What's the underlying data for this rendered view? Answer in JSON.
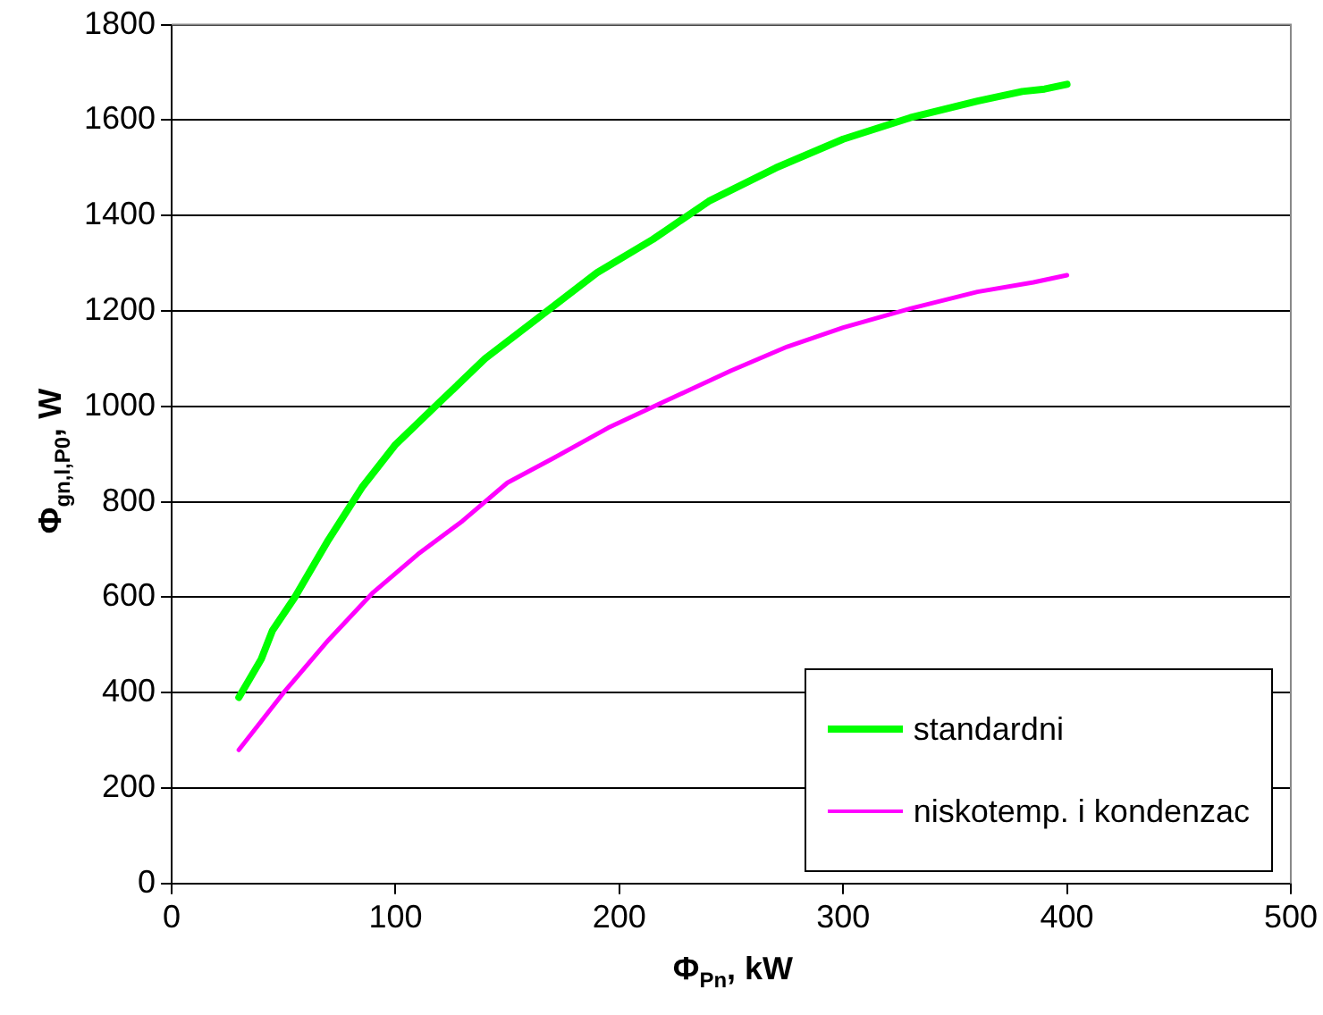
{
  "chart_data": {
    "type": "line",
    "xlabel": "Φ$_{Pn}$, kW",
    "ylabel": "Φ$_{gn,l,P0}$, W",
    "xlim": [
      0,
      500
    ],
    "xticks": [
      0,
      100,
      200,
      300,
      400,
      500
    ],
    "ylim": [
      0,
      1800
    ],
    "yticks": [
      0,
      200,
      400,
      600,
      800,
      1000,
      1200,
      1400,
      1600,
      1800
    ],
    "grid": "y",
    "legend": "bottom right",
    "marker": "none",
    "line_style": "solid",
    "series": [
      {
        "name": "standardni",
        "color": "#00ff00",
        "x": [
          30,
          40,
          45,
          55,
          70,
          85,
          100,
          120,
          140,
          165,
          190,
          215,
          240,
          270,
          300,
          330,
          360,
          380,
          390,
          400
        ],
        "values": [
          390,
          470,
          530,
          600,
          720,
          830,
          920,
          1010,
          1100,
          1190,
          1280,
          1350,
          1430,
          1500,
          1560,
          1605,
          1640,
          1660,
          1665,
          1675
        ]
      },
      {
        "name": "niskotemp. i kondenzac",
        "color": "#ff00ff",
        "x": [
          30,
          50,
          70,
          90,
          110,
          130,
          150,
          170,
          195,
          220,
          250,
          275,
          300,
          330,
          360,
          385,
          400
        ],
        "values": [
          280,
          400,
          510,
          610,
          690,
          760,
          840,
          890,
          955,
          1010,
          1075,
          1125,
          1165,
          1205,
          1240,
          1260,
          1275
        ]
      }
    ]
  }
}
